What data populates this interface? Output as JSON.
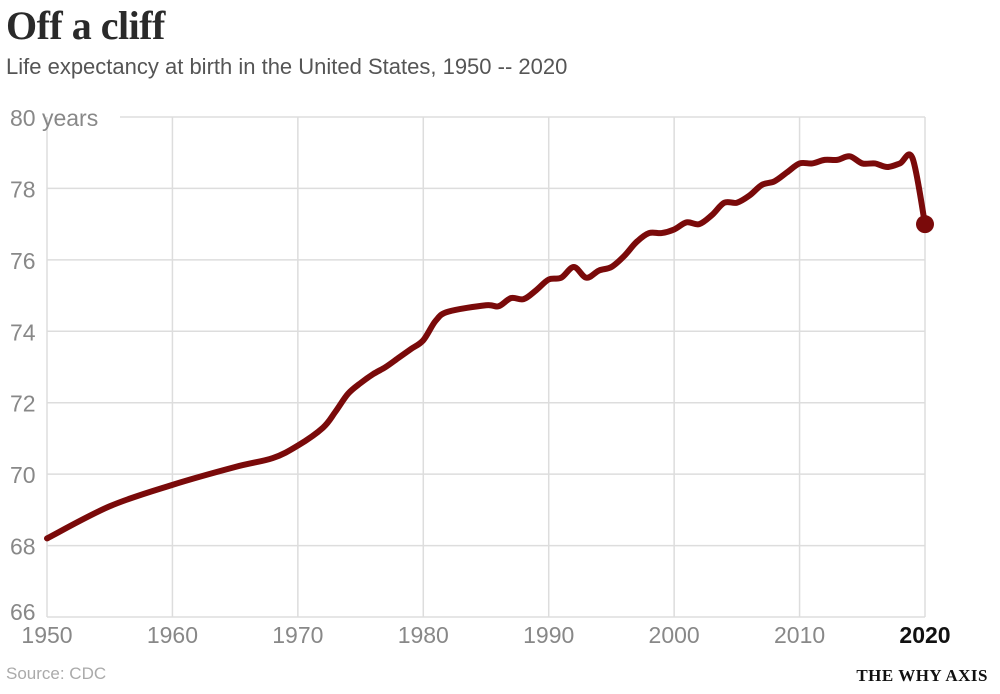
{
  "title": "Off a cliff",
  "subtitle": "Life expectancy at birth in the United States, 1950 -- 2020",
  "source": "Source: CDC",
  "brand": "THE WHY AXIS",
  "colors": {
    "line": "#7a0a0a",
    "grid": "#dddddd",
    "tick": "#888888"
  },
  "chart_data": {
    "type": "line",
    "title": "Off a cliff",
    "xlabel": "",
    "ylabel": "",
    "xlim": [
      1950,
      2020
    ],
    "ylim": [
      66,
      80
    ],
    "grid": true,
    "x_ticks": [
      "1950",
      "1960",
      "1970",
      "1980",
      "1990",
      "2000",
      "2010",
      "2020"
    ],
    "x_tick_emphasis": "2020",
    "y_ticks": [
      "66",
      "68",
      "70",
      "72",
      "74",
      "76",
      "78",
      "80 years"
    ],
    "end_marker": true,
    "series": [
      {
        "x": [
          1950,
          1955,
          1960,
          1965,
          1968,
          1970,
          1972,
          1973,
          1974,
          1975,
          1976,
          1977,
          1978,
          1979,
          1980,
          1981,
          1982,
          1985,
          1986,
          1987,
          1988,
          1989,
          1990,
          1991,
          1992,
          1993,
          1994,
          1995,
          1996,
          1997,
          1998,
          1999,
          2000,
          2001,
          2002,
          2003,
          2004,
          2005,
          2006,
          2007,
          2008,
          2009,
          2010,
          2011,
          2012,
          2013,
          2014,
          2015,
          2016,
          2017,
          2018,
          2019,
          2020
        ],
        "y": [
          68.2,
          69.1,
          69.7,
          70.2,
          70.45,
          70.8,
          71.3,
          71.75,
          72.25,
          72.55,
          72.8,
          73.0,
          73.25,
          73.5,
          73.75,
          74.3,
          74.55,
          74.73,
          74.7,
          74.93,
          74.9,
          75.15,
          75.45,
          75.5,
          75.8,
          75.5,
          75.7,
          75.8,
          76.1,
          76.5,
          76.75,
          76.75,
          76.85,
          77.05,
          77.0,
          77.25,
          77.6,
          77.6,
          77.8,
          78.1,
          78.2,
          78.45,
          78.7,
          78.7,
          78.8,
          78.8,
          78.9,
          78.7,
          78.7,
          78.6,
          78.7,
          78.85,
          77.0
        ]
      }
    ]
  }
}
